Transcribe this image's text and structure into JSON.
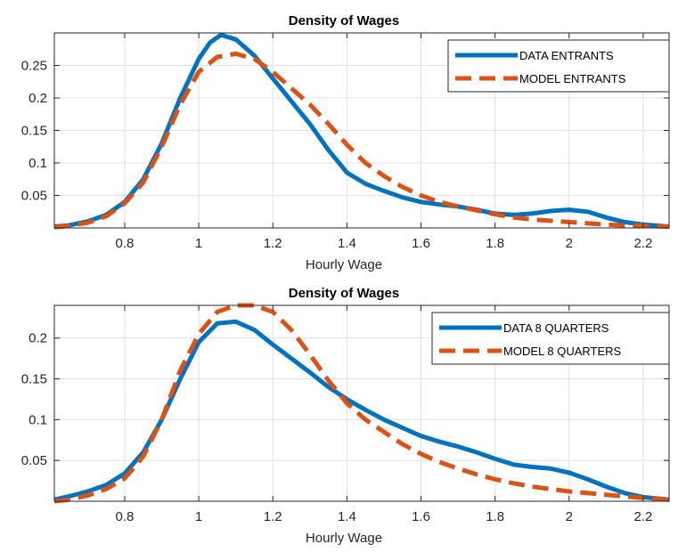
{
  "chart_data": [
    {
      "type": "line",
      "title": "Density of Wages",
      "xlabel": "Hourly Wage",
      "ylabel": "",
      "xlim": [
        0.61,
        2.27
      ],
      "ylim": [
        0,
        0.3
      ],
      "xticks": [
        0.8,
        1.0,
        1.2,
        1.4,
        1.6,
        1.8,
        2.0,
        2.2
      ],
      "xtick_labels": [
        "0.8",
        "1",
        "1.2",
        "1.4",
        "1.6",
        "1.8",
        "2",
        "2.2"
      ],
      "yticks": [
        0.05,
        0.1,
        0.15,
        0.2,
        0.25
      ],
      "ytick_labels": [
        "0.05",
        "0.1",
        "0.15",
        "0.2",
        "0.25"
      ],
      "grid": true,
      "legend_position": "top-right",
      "series": [
        {
          "name": "DATA ENTRANTS",
          "color": "#0072BD",
          "style": "solid",
          "x": [
            0.61,
            0.65,
            0.7,
            0.75,
            0.8,
            0.85,
            0.9,
            0.95,
            1.0,
            1.03,
            1.06,
            1.1,
            1.15,
            1.2,
            1.25,
            1.3,
            1.35,
            1.4,
            1.45,
            1.5,
            1.55,
            1.6,
            1.65,
            1.7,
            1.75,
            1.8,
            1.85,
            1.9,
            1.95,
            2.0,
            2.05,
            2.1,
            2.15,
            2.2,
            2.27
          ],
          "y": [
            0.002,
            0.004,
            0.01,
            0.02,
            0.04,
            0.075,
            0.13,
            0.2,
            0.26,
            0.285,
            0.297,
            0.29,
            0.265,
            0.23,
            0.195,
            0.16,
            0.12,
            0.085,
            0.068,
            0.057,
            0.047,
            0.04,
            0.036,
            0.033,
            0.028,
            0.022,
            0.02,
            0.022,
            0.026,
            0.028,
            0.025,
            0.016,
            0.009,
            0.005,
            0.002
          ]
        },
        {
          "name": "MODEL ENTRANTS",
          "color": "#D95319",
          "style": "dashed",
          "x": [
            0.61,
            0.65,
            0.7,
            0.75,
            0.8,
            0.85,
            0.9,
            0.95,
            1.0,
            1.05,
            1.1,
            1.15,
            1.2,
            1.25,
            1.3,
            1.35,
            1.4,
            1.45,
            1.5,
            1.55,
            1.6,
            1.65,
            1.7,
            1.75,
            1.8,
            1.85,
            1.9,
            1.95,
            2.0,
            2.05,
            2.1,
            2.15,
            2.2,
            2.27
          ],
          "y": [
            0.001,
            0.003,
            0.008,
            0.018,
            0.038,
            0.07,
            0.125,
            0.19,
            0.24,
            0.263,
            0.268,
            0.26,
            0.24,
            0.215,
            0.19,
            0.16,
            0.128,
            0.1,
            0.08,
            0.063,
            0.05,
            0.04,
            0.033,
            0.027,
            0.021,
            0.016,
            0.013,
            0.011,
            0.009,
            0.007,
            0.005,
            0.004,
            0.003,
            0.002
          ]
        }
      ]
    },
    {
      "type": "line",
      "title": "Density of Wages",
      "xlabel": "Hourly Wage",
      "ylabel": "",
      "xlim": [
        0.61,
        2.27
      ],
      "ylim": [
        0,
        0.24
      ],
      "xticks": [
        0.8,
        1.0,
        1.2,
        1.4,
        1.6,
        1.8,
        2.0,
        2.2
      ],
      "xtick_labels": [
        "0.8",
        "1",
        "1.2",
        "1.4",
        "1.6",
        "1.8",
        "2",
        "2.2"
      ],
      "yticks": [
        0.05,
        0.1,
        0.15,
        0.2
      ],
      "ytick_labels": [
        "0.05",
        "0.1",
        "0.15",
        "0.2"
      ],
      "grid": true,
      "legend_position": "top-right",
      "series": [
        {
          "name": "DATA 8 QUARTERS",
          "color": "#0072BD",
          "style": "solid",
          "x": [
            0.61,
            0.65,
            0.7,
            0.75,
            0.8,
            0.85,
            0.9,
            0.95,
            1.0,
            1.05,
            1.1,
            1.15,
            1.2,
            1.25,
            1.3,
            1.35,
            1.4,
            1.45,
            1.5,
            1.55,
            1.6,
            1.65,
            1.7,
            1.75,
            1.8,
            1.85,
            1.9,
            1.95,
            2.0,
            2.05,
            2.1,
            2.15,
            2.2,
            2.27
          ],
          "y": [
            0.002,
            0.006,
            0.012,
            0.02,
            0.034,
            0.06,
            0.1,
            0.15,
            0.195,
            0.218,
            0.22,
            0.21,
            0.192,
            0.175,
            0.158,
            0.14,
            0.125,
            0.112,
            0.1,
            0.09,
            0.08,
            0.073,
            0.067,
            0.06,
            0.052,
            0.045,
            0.042,
            0.04,
            0.035,
            0.027,
            0.018,
            0.01,
            0.005,
            0.002
          ]
        },
        {
          "name": "MODEL 8 QUARTERS",
          "color": "#D95319",
          "style": "dashed",
          "x": [
            0.61,
            0.65,
            0.7,
            0.75,
            0.8,
            0.85,
            0.9,
            0.95,
            1.0,
            1.05,
            1.1,
            1.15,
            1.2,
            1.25,
            1.3,
            1.35,
            1.4,
            1.45,
            1.5,
            1.55,
            1.6,
            1.65,
            1.7,
            1.75,
            1.8,
            1.85,
            1.9,
            1.95,
            2.0,
            2.05,
            2.1,
            2.15,
            2.2,
            2.27
          ],
          "y": [
            0.0,
            0.002,
            0.007,
            0.015,
            0.028,
            0.055,
            0.1,
            0.16,
            0.205,
            0.232,
            0.24,
            0.24,
            0.232,
            0.21,
            0.18,
            0.148,
            0.12,
            0.1,
            0.085,
            0.07,
            0.058,
            0.048,
            0.04,
            0.033,
            0.027,
            0.022,
            0.018,
            0.015,
            0.012,
            0.01,
            0.008,
            0.006,
            0.004,
            0.002
          ]
        }
      ]
    }
  ]
}
